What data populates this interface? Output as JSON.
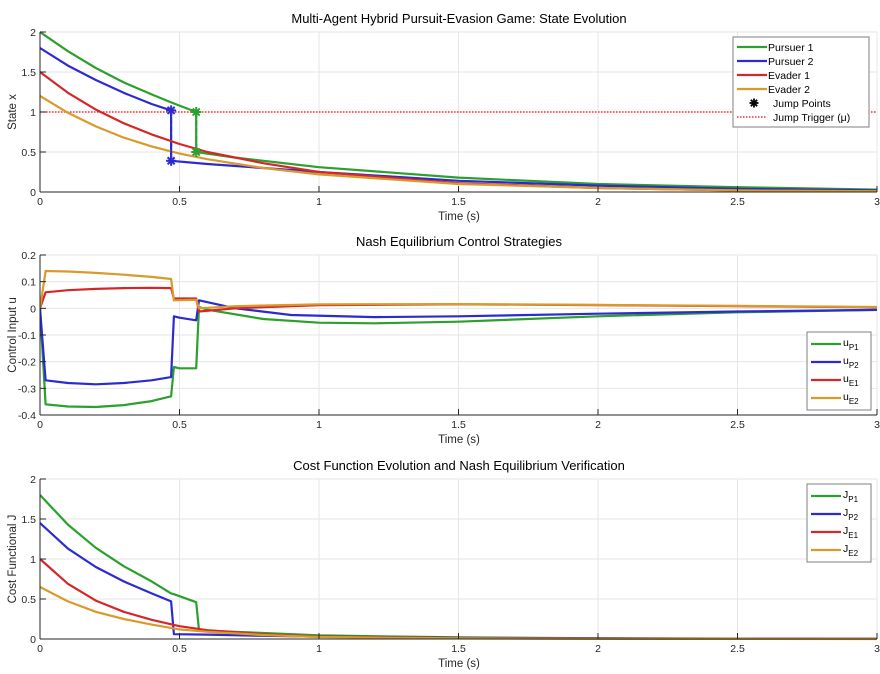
{
  "figure": {
    "top_fragment_text": "- - - -"
  },
  "chart_data": [
    {
      "type": "line",
      "title": "Multi-Agent Hybrid Pursuit-Evasion Game: State Evolution",
      "xlabel": "Time (s)",
      "ylabel": "State x",
      "xlim": [
        0,
        3
      ],
      "ylim": [
        0,
        2
      ],
      "xticks": [
        "0",
        "0.5",
        "1",
        "1.5",
        "2",
        "2.5",
        "3"
      ],
      "yticks": [
        "0",
        "0.5",
        "1",
        "1.5",
        "2"
      ],
      "grid": true,
      "legend_position": "top-right",
      "series": [
        {
          "name": "Pursuer 1",
          "color": "#2ca02c",
          "x": [
            0,
            0.1,
            0.2,
            0.3,
            0.4,
            0.47,
            0.5,
            0.56,
            0.56,
            0.7,
            1.0,
            1.5,
            2.0,
            2.5,
            3.0
          ],
          "y": [
            2.0,
            1.76,
            1.55,
            1.37,
            1.22,
            1.12,
            1.08,
            1.0,
            0.5,
            0.43,
            0.31,
            0.18,
            0.1,
            0.06,
            0.03
          ]
        },
        {
          "name": "Pursuer 2",
          "color": "#2b2bd1",
          "x": [
            0,
            0.1,
            0.2,
            0.3,
            0.4,
            0.47,
            0.47,
            0.6,
            0.8,
            1.0,
            1.5,
            2.0,
            2.5,
            3.0
          ],
          "y": [
            1.8,
            1.58,
            1.4,
            1.24,
            1.1,
            1.02,
            0.39,
            0.35,
            0.3,
            0.25,
            0.14,
            0.08,
            0.04,
            0.02
          ]
        },
        {
          "name": "Evader 1",
          "color": "#d62728",
          "x": [
            0,
            0.1,
            0.2,
            0.3,
            0.4,
            0.5,
            0.6,
            0.8,
            1.0,
            1.5,
            2.0,
            2.5,
            3.0
          ],
          "y": [
            1.5,
            1.24,
            1.03,
            0.86,
            0.72,
            0.6,
            0.5,
            0.36,
            0.25,
            0.11,
            0.05,
            0.02,
            0.01
          ]
        },
        {
          "name": "Evader 2",
          "color": "#d99a2b",
          "x": [
            0,
            0.1,
            0.2,
            0.3,
            0.4,
            0.5,
            0.6,
            0.8,
            1.0,
            1.5,
            2.0,
            2.5,
            3.0
          ],
          "y": [
            1.2,
            0.99,
            0.82,
            0.68,
            0.57,
            0.48,
            0.41,
            0.3,
            0.22,
            0.1,
            0.05,
            0.02,
            0.01
          ]
        }
      ],
      "jump_points": [
        {
          "agent": "Pursuer 2",
          "color": "#2b2bd1",
          "x": 0.47,
          "y_before": 1.02,
          "y_after": 0.39
        },
        {
          "agent": "Pursuer 1",
          "color": "#2ca02c",
          "x": 0.56,
          "y_before": 1.0,
          "y_after": 0.5
        }
      ],
      "threshold": {
        "name": "Jump Trigger (μ)",
        "y": 1.0,
        "color": "#ff0000"
      },
      "legend": [
        "Pursuer 1",
        "Pursuer 2",
        "Evader 1",
        "Evader 2",
        "Jump Points",
        "Jump Trigger (μ)"
      ]
    },
    {
      "type": "line",
      "title": "Nash Equilibrium Control Strategies",
      "xlabel": "Time (s)",
      "ylabel": "Control Input u",
      "xlim": [
        0,
        3
      ],
      "ylim": [
        -0.4,
        0.2
      ],
      "xticks": [
        "0",
        "0.5",
        "1",
        "1.5",
        "2",
        "2.5",
        "3"
      ],
      "yticks": [
        "-0.4",
        "-0.3",
        "-0.2",
        "-0.1",
        "0",
        "0.1",
        "0.2"
      ],
      "grid": true,
      "legend_position": "bottom-right",
      "series": [
        {
          "name": "u",
          "sub": "P1",
          "color": "#2ca02c",
          "x": [
            0,
            0.02,
            0.1,
            0.2,
            0.3,
            0.4,
            0.47,
            0.48,
            0.5,
            0.56,
            0.57,
            0.6,
            0.8,
            1.0,
            1.2,
            1.5,
            2.0,
            2.5,
            3.0
          ],
          "y": [
            0,
            -0.36,
            -0.368,
            -0.37,
            -0.363,
            -0.348,
            -0.33,
            -0.22,
            -0.225,
            -0.225,
            0.005,
            -0.005,
            -0.04,
            -0.054,
            -0.056,
            -0.05,
            -0.03,
            -0.015,
            -0.006
          ]
        },
        {
          "name": "u",
          "sub": "P2",
          "color": "#2b2bd1",
          "x": [
            0,
            0.02,
            0.1,
            0.2,
            0.3,
            0.4,
            0.47,
            0.48,
            0.5,
            0.56,
            0.57,
            0.7,
            0.9,
            1.2,
            1.5,
            2.0,
            2.5,
            3.0
          ],
          "y": [
            0,
            -0.27,
            -0.28,
            -0.285,
            -0.28,
            -0.27,
            -0.258,
            -0.03,
            -0.035,
            -0.045,
            0.03,
            0.0,
            -0.025,
            -0.033,
            -0.03,
            -0.02,
            -0.012,
            -0.006
          ]
        },
        {
          "name": "u",
          "sub": "E1",
          "color": "#d62728",
          "x": [
            0,
            0.02,
            0.1,
            0.2,
            0.3,
            0.4,
            0.47,
            0.48,
            0.56,
            0.57,
            0.7,
            1.0,
            1.5,
            2.0,
            2.5,
            3.0
          ],
          "y": [
            0,
            0.06,
            0.068,
            0.073,
            0.076,
            0.077,
            0.076,
            0.037,
            0.037,
            -0.012,
            0.0,
            0.012,
            0.015,
            0.012,
            0.008,
            0.004
          ]
        },
        {
          "name": "u",
          "sub": "E2",
          "color": "#d99a2b",
          "x": [
            0,
            0.02,
            0.1,
            0.2,
            0.3,
            0.4,
            0.47,
            0.48,
            0.56,
            0.57,
            0.7,
            1.0,
            1.5,
            2.0,
            2.5,
            3.0
          ],
          "y": [
            0,
            0.14,
            0.138,
            0.133,
            0.126,
            0.118,
            0.11,
            0.03,
            0.032,
            0.0,
            0.008,
            0.015,
            0.016,
            0.013,
            0.009,
            0.005
          ]
        }
      ],
      "legend": [
        "u_P1",
        "u_P2",
        "u_E1",
        "u_E2"
      ]
    },
    {
      "type": "line",
      "title": "Cost Function Evolution and Nash Equilibrium Verification",
      "xlabel": "Time (s)",
      "ylabel": "Cost Functional J",
      "xlim": [
        0,
        3
      ],
      "ylim": [
        0,
        2
      ],
      "xticks": [
        "0",
        "0.5",
        "1",
        "1.5",
        "2",
        "2.5",
        "3"
      ],
      "yticks": [
        "0",
        "0.5",
        "1",
        "1.5",
        "2"
      ],
      "grid": true,
      "legend_position": "top-right",
      "series": [
        {
          "name": "J",
          "sub": "P1",
          "color": "#2ca02c",
          "x": [
            0,
            0.1,
            0.2,
            0.3,
            0.4,
            0.47,
            0.48,
            0.56,
            0.57,
            0.7,
            1.0,
            1.5,
            2.0,
            2.5,
            3.0
          ],
          "y": [
            1.8,
            1.43,
            1.14,
            0.91,
            0.72,
            0.57,
            0.56,
            0.46,
            0.11,
            0.09,
            0.045,
            0.02,
            0.01,
            0.005,
            0.003
          ]
        },
        {
          "name": "J",
          "sub": "P2",
          "color": "#2b2bd1",
          "x": [
            0,
            0.1,
            0.2,
            0.3,
            0.4,
            0.47,
            0.48,
            0.6,
            0.8,
            1.0,
            1.5,
            2.0,
            2.5,
            3.0
          ],
          "y": [
            1.45,
            1.13,
            0.9,
            0.72,
            0.57,
            0.47,
            0.06,
            0.055,
            0.04,
            0.03,
            0.015,
            0.008,
            0.004,
            0.002
          ]
        },
        {
          "name": "J",
          "sub": "E1",
          "color": "#d62728",
          "x": [
            0,
            0.1,
            0.2,
            0.3,
            0.4,
            0.5,
            0.6,
            0.8,
            1.0,
            1.5,
            2.0,
            2.5,
            3.0
          ],
          "y": [
            1.0,
            0.69,
            0.48,
            0.34,
            0.24,
            0.16,
            0.11,
            0.06,
            0.03,
            0.01,
            0.004,
            0.002,
            0.001
          ]
        },
        {
          "name": "J",
          "sub": "E2",
          "color": "#d99a2b",
          "x": [
            0,
            0.1,
            0.2,
            0.3,
            0.4,
            0.5,
            0.6,
            0.8,
            1.0,
            1.5,
            2.0,
            2.5,
            3.0
          ],
          "y": [
            0.65,
            0.47,
            0.34,
            0.25,
            0.18,
            0.12,
            0.09,
            0.05,
            0.025,
            0.008,
            0.003,
            0.001,
            0.0
          ]
        }
      ],
      "legend": [
        "J_P1",
        "J_P2",
        "J_E1",
        "J_E2"
      ]
    }
  ]
}
